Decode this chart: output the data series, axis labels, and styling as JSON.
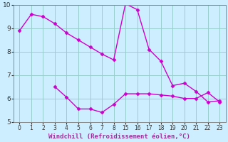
{
  "xlabel": "Windchill (Refroidissement éolien,°C)",
  "bg_color": "#cceeff",
  "grid_color": "#99cccc",
  "line_color": "#cc00cc",
  "series1_x_vals": [
    0,
    1,
    2,
    3,
    4,
    5,
    6,
    7,
    8,
    15,
    16,
    17,
    18,
    19,
    20,
    21,
    22,
    23
  ],
  "series1_y": [
    8.9,
    9.6,
    9.5,
    9.2,
    8.8,
    8.5,
    8.2,
    7.9,
    7.65,
    10.05,
    9.8,
    8.1,
    7.6,
    6.55,
    6.65,
    6.3,
    5.85,
    5.9
  ],
  "series2_x_vals": [
    3,
    4,
    5,
    6,
    7,
    8,
    15,
    16,
    17,
    18,
    19,
    20,
    21,
    22,
    23
  ],
  "series2_y": [
    6.5,
    6.05,
    5.55,
    5.55,
    5.4,
    5.75,
    6.2,
    6.2,
    6.2,
    6.15,
    6.1,
    6.0,
    6.0,
    6.25,
    5.85
  ],
  "x_vals_all": [
    0,
    1,
    2,
    3,
    4,
    5,
    6,
    7,
    8,
    15,
    16,
    17,
    18,
    19,
    20,
    21,
    22,
    23
  ],
  "ylim": [
    5,
    10
  ],
  "yticks": [
    5,
    6,
    7,
    8,
    9,
    10
  ],
  "marker": "D",
  "markersize": 2.5,
  "linewidth": 1.0
}
